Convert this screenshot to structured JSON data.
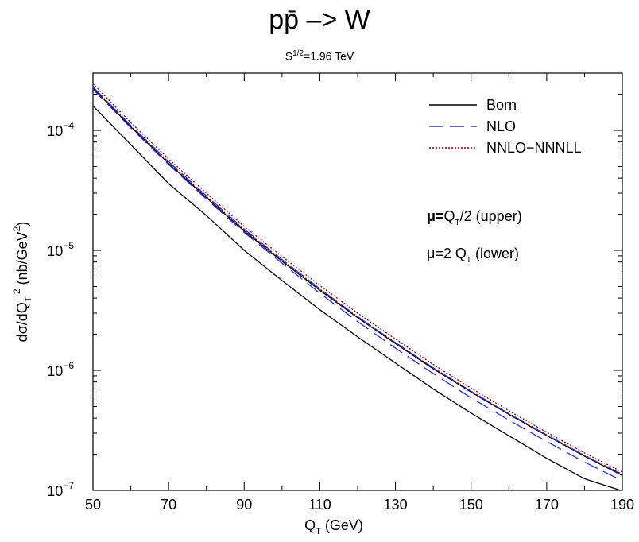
{
  "chart_data": {
    "type": "line",
    "title": "pp̄ –> W",
    "subtitle_base": "S",
    "subtitle_exp": "1/2",
    "subtitle_rest": "=1.96 TeV",
    "xlabel": "Q_T (GeV)",
    "ylabel": "dσ/dQ_T² (nb/GeV²)",
    "xlim": [
      50,
      190
    ],
    "ylim": [
      1e-07,
      0.0003
    ],
    "yscale": "log",
    "x_ticks": [
      "50",
      "70",
      "90",
      "110",
      "130",
      "150",
      "170",
      "190"
    ],
    "y_ticks": [
      {
        "value": 0.0001,
        "base": "10",
        "exp": "−4"
      },
      {
        "value": 1e-05,
        "base": "10",
        "exp": "−5"
      },
      {
        "value": 1e-06,
        "base": "10",
        "exp": "−6"
      },
      {
        "value": 1e-07,
        "base": "10",
        "exp": "−7"
      }
    ],
    "legend_position": "top-right",
    "annotations": [
      {
        "mu": "μ=",
        "q": "Q",
        "sub": "T",
        "rest": "/2 (upper)",
        "bold": true
      },
      {
        "mu": "μ=2 ",
        "q": "Q",
        "sub": "T",
        "rest": "  (lower)",
        "bold": false
      }
    ],
    "x": [
      50,
      60,
      70,
      80,
      90,
      100,
      110,
      120,
      130,
      140,
      150,
      160,
      170,
      180,
      190
    ],
    "series": [
      {
        "name": "Born",
        "style": "solid",
        "color": "#000000",
        "values": [
          0.00016,
          7.6e-05,
          3.6e-05,
          1.95e-05,
          1e-05,
          5.6e-06,
          3.2e-06,
          1.9e-06,
          1.15e-06,
          7e-07,
          4.4e-07,
          2.85e-07,
          1.85e-07,
          1.25e-07,
          8.6e-08
        ]
      },
      {
        "name": "NLO",
        "style": "dashed",
        "color": "#2b2be0",
        "values": [
          0.00023,
          0.00011,
          5.5e-05,
          2.85e-05,
          1.5e-05,
          8.4e-06,
          4.8e-06,
          2.8e-06,
          1.7e-06,
          1.05e-06,
          6.7e-07,
          4.35e-07,
          2.9e-07,
          1.95e-07,
          1.35e-07
        ]
      },
      {
        "name": "NNLO−NNNLL",
        "style": "dotted",
        "color": "#8b0000",
        "values": [
          0.000245,
          0.000116,
          5.8e-05,
          3e-05,
          1.58e-05,
          8.9e-06,
          5.1e-06,
          3e-06,
          1.82e-06,
          1.12e-06,
          7.1e-07,
          4.6e-07,
          3.05e-07,
          2.05e-07,
          1.42e-07
        ]
      }
    ],
    "extra_curves": [
      {
        "style": "solid",
        "color": "#000000",
        "values": [
          0.000225,
          0.000107,
          5.3e-05,
          2.75e-05,
          1.45e-05,
          8.1e-06,
          4.65e-06,
          2.75e-06,
          1.67e-06,
          1.03e-06,
          6.6e-07,
          4.3e-07,
          2.86e-07,
          1.93e-07,
          1.33e-07
        ]
      },
      {
        "style": "dashed",
        "color": "#2b2be0",
        "values": [
          0.00022,
          0.000105,
          5.2e-05,
          2.68e-05,
          1.41e-05,
          7.8e-06,
          4.4e-06,
          2.55e-06,
          1.53e-06,
          9.4e-07,
          5.9e-07,
          3.85e-07,
          2.55e-07,
          1.72e-07,
          1.2e-07
        ]
      },
      {
        "style": "dotted",
        "color": "#8b0000",
        "values": [
          0.00023,
          0.000109,
          5.45e-05,
          2.8e-05,
          1.48e-05,
          8.3e-06,
          4.75e-06,
          2.8e-06,
          1.7e-06,
          1.05e-06,
          6.7e-07,
          4.35e-07,
          2.9e-07,
          1.96e-07,
          1.36e-07
        ]
      }
    ]
  }
}
